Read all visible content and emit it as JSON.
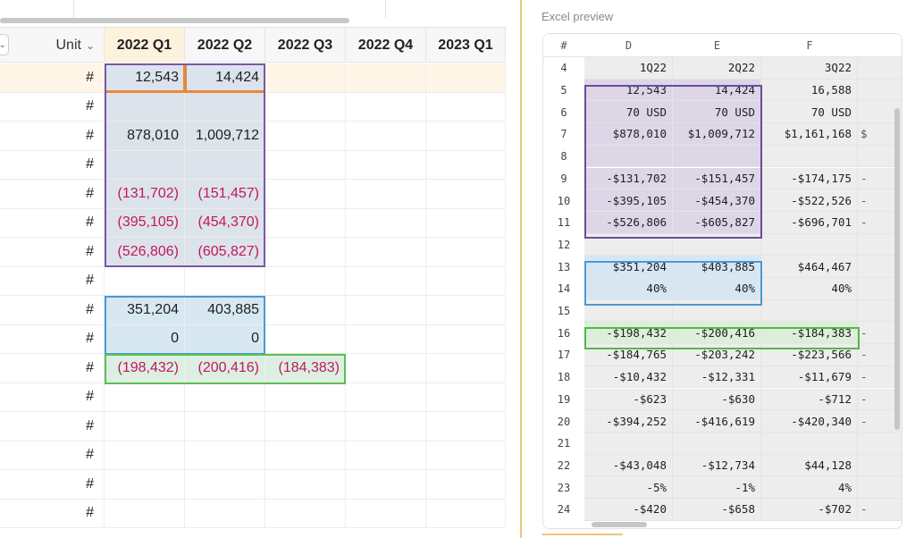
{
  "grid": {
    "unit_header": "Unit",
    "columns": [
      "2022 Q1",
      "2022 Q2",
      "2022 Q3",
      "2022 Q4",
      "2023 Q1"
    ],
    "rows": [
      {
        "unit": "#",
        "q1": "12,543",
        "q2": "14,424",
        "q3": "",
        "neg": false
      },
      {
        "unit": "#",
        "q1": "",
        "q2": "",
        "q3": "",
        "neg": false
      },
      {
        "unit": "#",
        "q1": "878,010",
        "q2": "1,009,712",
        "q3": "",
        "neg": false
      },
      {
        "unit": "#",
        "q1": "",
        "q2": "",
        "q3": "",
        "neg": false
      },
      {
        "unit": "#",
        "q1": "(131,702)",
        "q2": "(151,457)",
        "q3": "",
        "neg": true
      },
      {
        "unit": "#",
        "q1": "(395,105)",
        "q2": "(454,370)",
        "q3": "",
        "neg": true
      },
      {
        "unit": "#",
        "q1": "(526,806)",
        "q2": "(605,827)",
        "q3": "",
        "neg": true
      },
      {
        "unit": "#",
        "q1": "",
        "q2": "",
        "q3": "",
        "neg": false
      },
      {
        "unit": "#",
        "q1": "351,204",
        "q2": "403,885",
        "q3": "",
        "neg": false
      },
      {
        "unit": "#",
        "q1": "0",
        "q2": "0",
        "q3": "",
        "neg": false
      },
      {
        "unit": "#",
        "q1": "(198,432)",
        "q2": "(200,416)",
        "q3": "(184,383)",
        "neg": true
      },
      {
        "unit": "#",
        "q1": "",
        "q2": "",
        "q3": "",
        "neg": false
      },
      {
        "unit": "#",
        "q1": "",
        "q2": "",
        "q3": "",
        "neg": false
      },
      {
        "unit": "#",
        "q1": "",
        "q2": "",
        "q3": "",
        "neg": false
      },
      {
        "unit": "#",
        "q1": "",
        "q2": "",
        "q3": "",
        "neg": false
      },
      {
        "unit": "#",
        "q1": "",
        "q2": "",
        "q3": "",
        "neg": false
      }
    ]
  },
  "preview": {
    "title": "Excel preview",
    "headers": {
      "row": "#",
      "d": "D",
      "e": "E",
      "f": "F"
    },
    "rows": [
      {
        "n": "4",
        "d": "1Q22",
        "e": "2Q22",
        "f": "3Q22",
        "g": ""
      },
      {
        "n": "5",
        "d": "12,543",
        "e": "14,424",
        "f": "16,588",
        "g": ""
      },
      {
        "n": "6",
        "d": "70 USD",
        "e": "70 USD",
        "f": "70 USD",
        "g": ""
      },
      {
        "n": "7",
        "d": "$878,010",
        "e": "$1,009,712",
        "f": "$1,161,168",
        "g": "$"
      },
      {
        "n": "8",
        "d": "",
        "e": "",
        "f": "",
        "g": ""
      },
      {
        "n": "9",
        "d": "-$131,702",
        "e": "-$151,457",
        "f": "-$174,175",
        "g": "-"
      },
      {
        "n": "10",
        "d": "-$395,105",
        "e": "-$454,370",
        "f": "-$522,526",
        "g": "-"
      },
      {
        "n": "11",
        "d": "-$526,806",
        "e": "-$605,827",
        "f": "-$696,701",
        "g": "-"
      },
      {
        "n": "12",
        "d": "",
        "e": "",
        "f": "",
        "g": ""
      },
      {
        "n": "13",
        "d": "$351,204",
        "e": "$403,885",
        "f": "$464,467",
        "g": ""
      },
      {
        "n": "14",
        "d": "40%",
        "e": "40%",
        "f": "40%",
        "g": ""
      },
      {
        "n": "15",
        "d": "",
        "e": "",
        "f": "",
        "g": ""
      },
      {
        "n": "16",
        "d": "-$198,432",
        "e": "-$200,416",
        "f": "-$184,383",
        "g": "-"
      },
      {
        "n": "17",
        "d": "-$184,765",
        "e": "-$203,242",
        "f": "-$223,566",
        "g": "-"
      },
      {
        "n": "18",
        "d": "-$10,432",
        "e": "-$12,331",
        "f": "-$11,679",
        "g": "-"
      },
      {
        "n": "19",
        "d": "-$623",
        "e": "-$630",
        "f": "-$712",
        "g": "-"
      },
      {
        "n": "20",
        "d": "-$394,252",
        "e": "-$416,619",
        "f": "-$420,340",
        "g": "-"
      },
      {
        "n": "21",
        "d": "",
        "e": "",
        "f": "",
        "g": ""
      },
      {
        "n": "22",
        "d": "-$43,048",
        "e": "-$12,734",
        "f": "$44,128",
        "g": ""
      },
      {
        "n": "23",
        "d": "-5%",
        "e": "-1%",
        "f": "4%",
        "g": ""
      },
      {
        "n": "24",
        "d": "-$420",
        "e": "-$658",
        "f": "-$702",
        "g": "-"
      }
    ]
  }
}
